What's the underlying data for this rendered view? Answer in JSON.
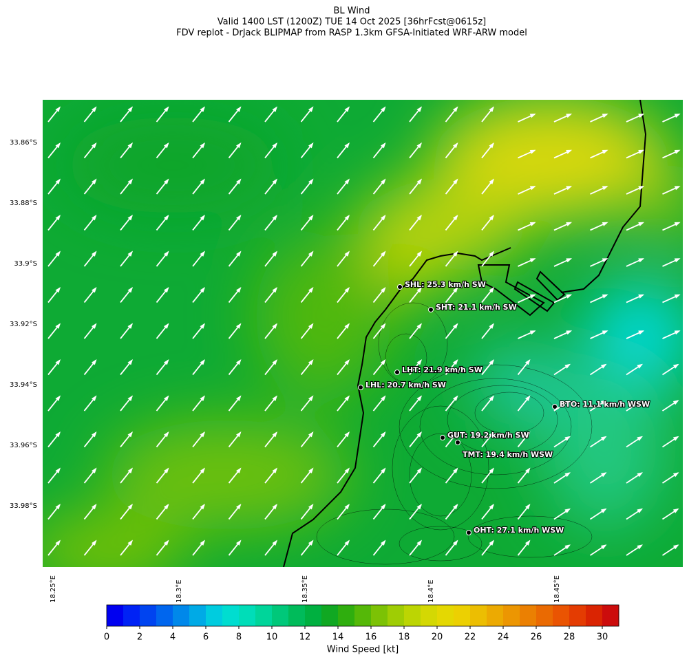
{
  "header": {
    "title": "BL Wind",
    "subtitle": "Valid 1400 LST (1200Z) TUE 14 Oct 2025 [36hrFcst@0615z]",
    "source": "FDV replot - DrJack BLIPMAP from RASP 1.3km GFSA-Initiated WRF-ARW model"
  },
  "map": {
    "lat_ticks": [
      "33.86°S",
      "33.88°S",
      "33.9°S",
      "33.92°S",
      "33.94°S",
      "33.96°S",
      "33.98°S"
    ],
    "lon_ticks": [
      "18.25°E",
      "18.3°E",
      "18.35°E",
      "18.4°E",
      "18.45°E"
    ],
    "stations": [
      {
        "label": "SHL: 25.3 km/h SW"
      },
      {
        "label": "SHT: 21.1 km/h SW"
      },
      {
        "label": "LHT: 21.9 km/h SW"
      },
      {
        "label": "LHL: 20.7 km/h SW"
      },
      {
        "label": "BTO: 11.1 km/h WSW"
      },
      {
        "label": "GUT: 19.2 km/h SW"
      },
      {
        "label": "TMT: 19.4 km/h WSW"
      },
      {
        "label": "OHT: 27.1 km/h WSW"
      }
    ]
  },
  "colorbar": {
    "label": "Wind Speed [kt]",
    "range": [
      0,
      31
    ],
    "ticks": [
      0,
      2,
      4,
      6,
      8,
      10,
      12,
      14,
      16,
      18,
      20,
      22,
      24,
      26,
      28,
      30
    ],
    "colors": [
      "#0000f0",
      "#0022f5",
      "#0044f0",
      "#0066ee",
      "#0088ea",
      "#00aae6",
      "#00ccdf",
      "#00ddd0",
      "#00ddb8",
      "#00d59a",
      "#00c87a",
      "#00bb5a",
      "#00b040",
      "#10a822",
      "#2fae0e",
      "#55b808",
      "#7cc205",
      "#9fcd04",
      "#bcd503",
      "#d4d803",
      "#e4d802",
      "#ecd002",
      "#ecbe02",
      "#ecaa02",
      "#ec9602",
      "#eb8002",
      "#ea6a02",
      "#ea5402",
      "#e43c02",
      "#da2402",
      "#cc0c0c"
    ]
  }
}
